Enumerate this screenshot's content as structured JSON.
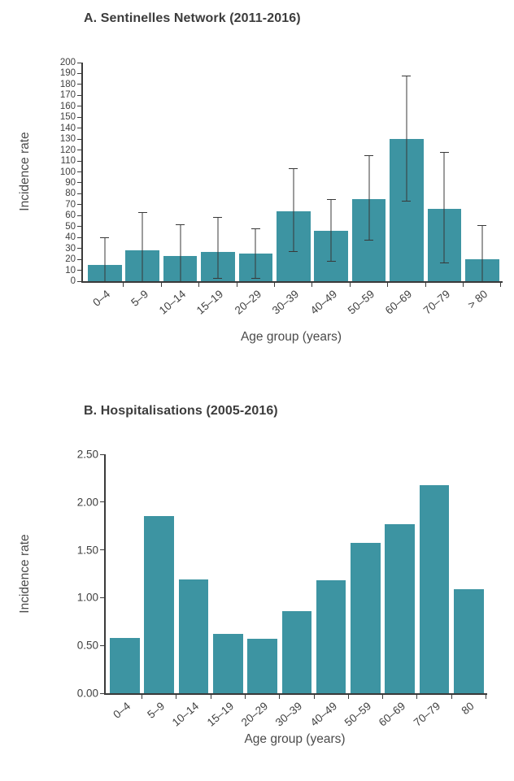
{
  "colors": {
    "bar": "#3d94a2",
    "axis": "#3a3a3a",
    "error_bar": "#383838",
    "title_text": "#3c3c3c",
    "tick_text": "#3f3f3f",
    "axis_label_text": "#4b4b4b",
    "background": "#ffffff"
  },
  "chart_data": [
    {
      "type": "bar",
      "title": "A. Sentinelles Network (2011-2016)",
      "ylabel": "Incidence rate",
      "xlabel": "Age group (years)",
      "categories": [
        "0–4",
        "5–9",
        "10–14",
        "15–19",
        "20–29",
        "30–39",
        "40–49",
        "50–59",
        "60–69",
        "70–79",
        "> 80"
      ],
      "values": [
        15,
        28.5,
        23,
        26.5,
        25,
        64,
        46,
        75,
        130,
        66,
        20
      ],
      "error_bars": [
        [
          0,
          40
        ],
        [
          0,
          63
        ],
        [
          0,
          52
        ],
        [
          2,
          59
        ],
        [
          2,
          48
        ],
        [
          27,
          103
        ],
        [
          18,
          75
        ],
        [
          37,
          115
        ],
        [
          73,
          188
        ],
        [
          16,
          118
        ],
        [
          0,
          51
        ]
      ],
      "ylim": [
        0,
        200
      ],
      "yticks": [
        "200",
        "190",
        "180",
        "170",
        "160",
        "150",
        "140",
        "130",
        "120",
        "110",
        "100",
        "90",
        "80",
        "70",
        "60",
        "50",
        "40",
        "30",
        "20",
        "10",
        "0"
      ],
      "grid": "off",
      "legend": "none",
      "error_bars_shown": true
    },
    {
      "type": "bar",
      "title": "B. Hospitalisations (2005-2016)",
      "ylabel": "Incidence rate",
      "xlabel": "Age group (years)",
      "categories": [
        "0–4",
        "5–9",
        "10–14",
        "15–19",
        "20–29",
        "30–39",
        "40–49",
        "50–59",
        "60–69",
        "70–79",
        "80"
      ],
      "values": [
        0.58,
        1.85,
        1.19,
        0.62,
        0.57,
        0.86,
        1.18,
        1.57,
        1.77,
        2.18,
        1.09
      ],
      "error_bars": null,
      "ylim": [
        0,
        2.5
      ],
      "yticks": [
        "2.50",
        "2.00",
        "1.50",
        "1.00",
        "0.50",
        "0.00"
      ],
      "grid": "off",
      "legend": "none",
      "error_bars_shown": false
    }
  ]
}
